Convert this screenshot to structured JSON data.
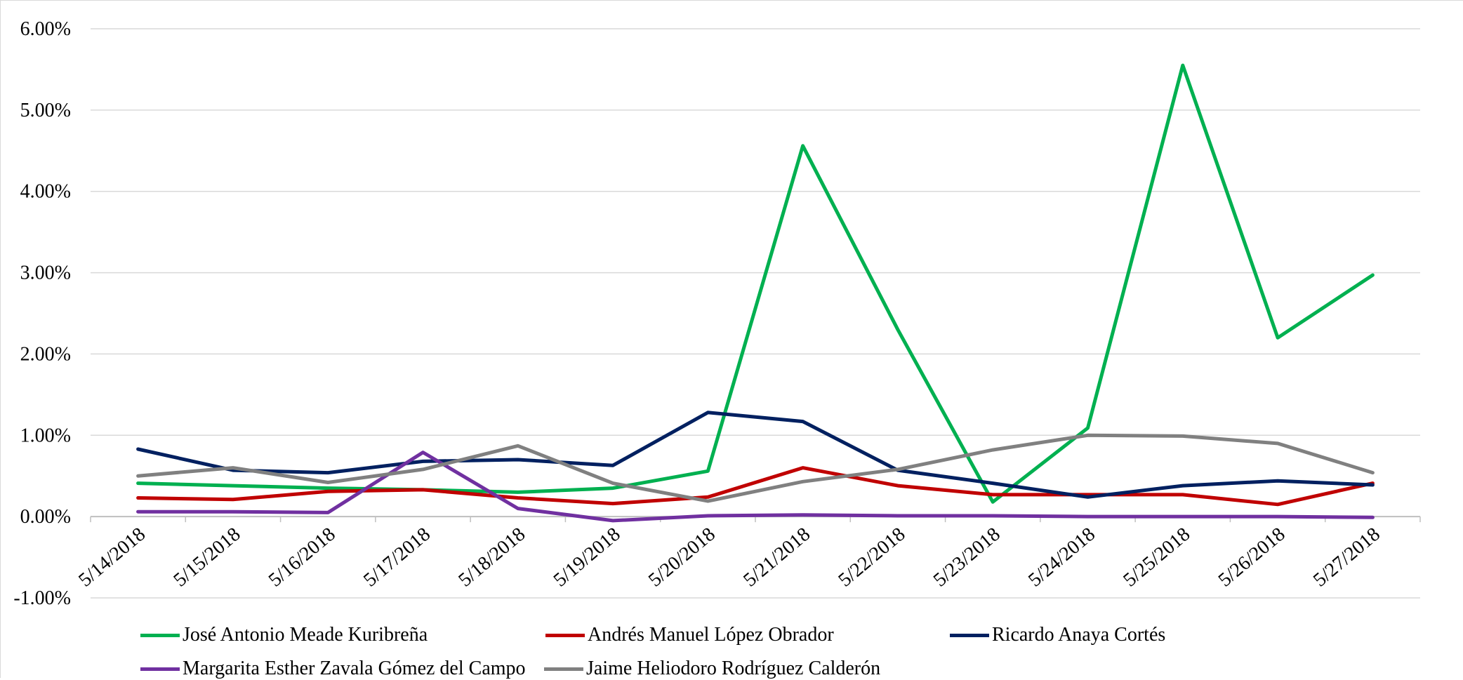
{
  "chart_data": {
    "type": "line",
    "title": "",
    "xlabel": "",
    "ylabel": "",
    "x": [
      "5/14/2018",
      "5/15/2018",
      "5/16/2018",
      "5/17/2018",
      "5/18/2018",
      "5/19/2018",
      "5/20/2018",
      "5/21/2018",
      "5/22/2018",
      "5/23/2018",
      "5/24/2018",
      "5/25/2018",
      "5/26/2018",
      "5/27/2018"
    ],
    "ylim": [
      -1,
      6
    ],
    "yticks": [
      -1,
      0,
      1,
      2,
      3,
      4,
      5,
      6
    ],
    "ytick_labels": [
      "-1.00%",
      "0.00%",
      "1.00%",
      "2.00%",
      "3.00%",
      "4.00%",
      "5.00%",
      "6.00%"
    ],
    "grid": true,
    "legend_position": "bottom",
    "series": [
      {
        "name": "José Antonio Meade Kuribreña",
        "color": "#00b050",
        "values": [
          0.41,
          0.38,
          0.35,
          0.33,
          0.3,
          0.35,
          0.56,
          4.56,
          2.3,
          0.18,
          1.09,
          5.55,
          2.2,
          2.97
        ]
      },
      {
        "name": "Andrés Manuel López Obrador",
        "color": "#c00000",
        "values": [
          0.23,
          0.21,
          0.31,
          0.33,
          0.23,
          0.16,
          0.24,
          0.6,
          0.38,
          0.27,
          0.27,
          0.27,
          0.15,
          0.41
        ]
      },
      {
        "name": "Ricardo Anaya Cortés",
        "color": "#002060",
        "values": [
          0.83,
          0.57,
          0.54,
          0.68,
          0.7,
          0.63,
          1.28,
          1.17,
          0.57,
          0.41,
          0.24,
          0.38,
          0.44,
          0.39
        ]
      },
      {
        "name": "Margarita Esther Zavala Gómez del Campo",
        "color": "#7030a0",
        "values": [
          0.06,
          0.06,
          0.05,
          0.79,
          0.1,
          -0.05,
          0.01,
          0.02,
          0.01,
          0.01,
          0.0,
          0.0,
          0.0,
          -0.01
        ]
      },
      {
        "name": "Jaime Heliodoro Rodríguez Calderón",
        "color": "#808080",
        "values": [
          0.5,
          0.6,
          0.42,
          0.58,
          0.87,
          0.41,
          0.19,
          0.43,
          0.58,
          0.82,
          1.0,
          0.99,
          0.9,
          0.54
        ]
      }
    ]
  }
}
